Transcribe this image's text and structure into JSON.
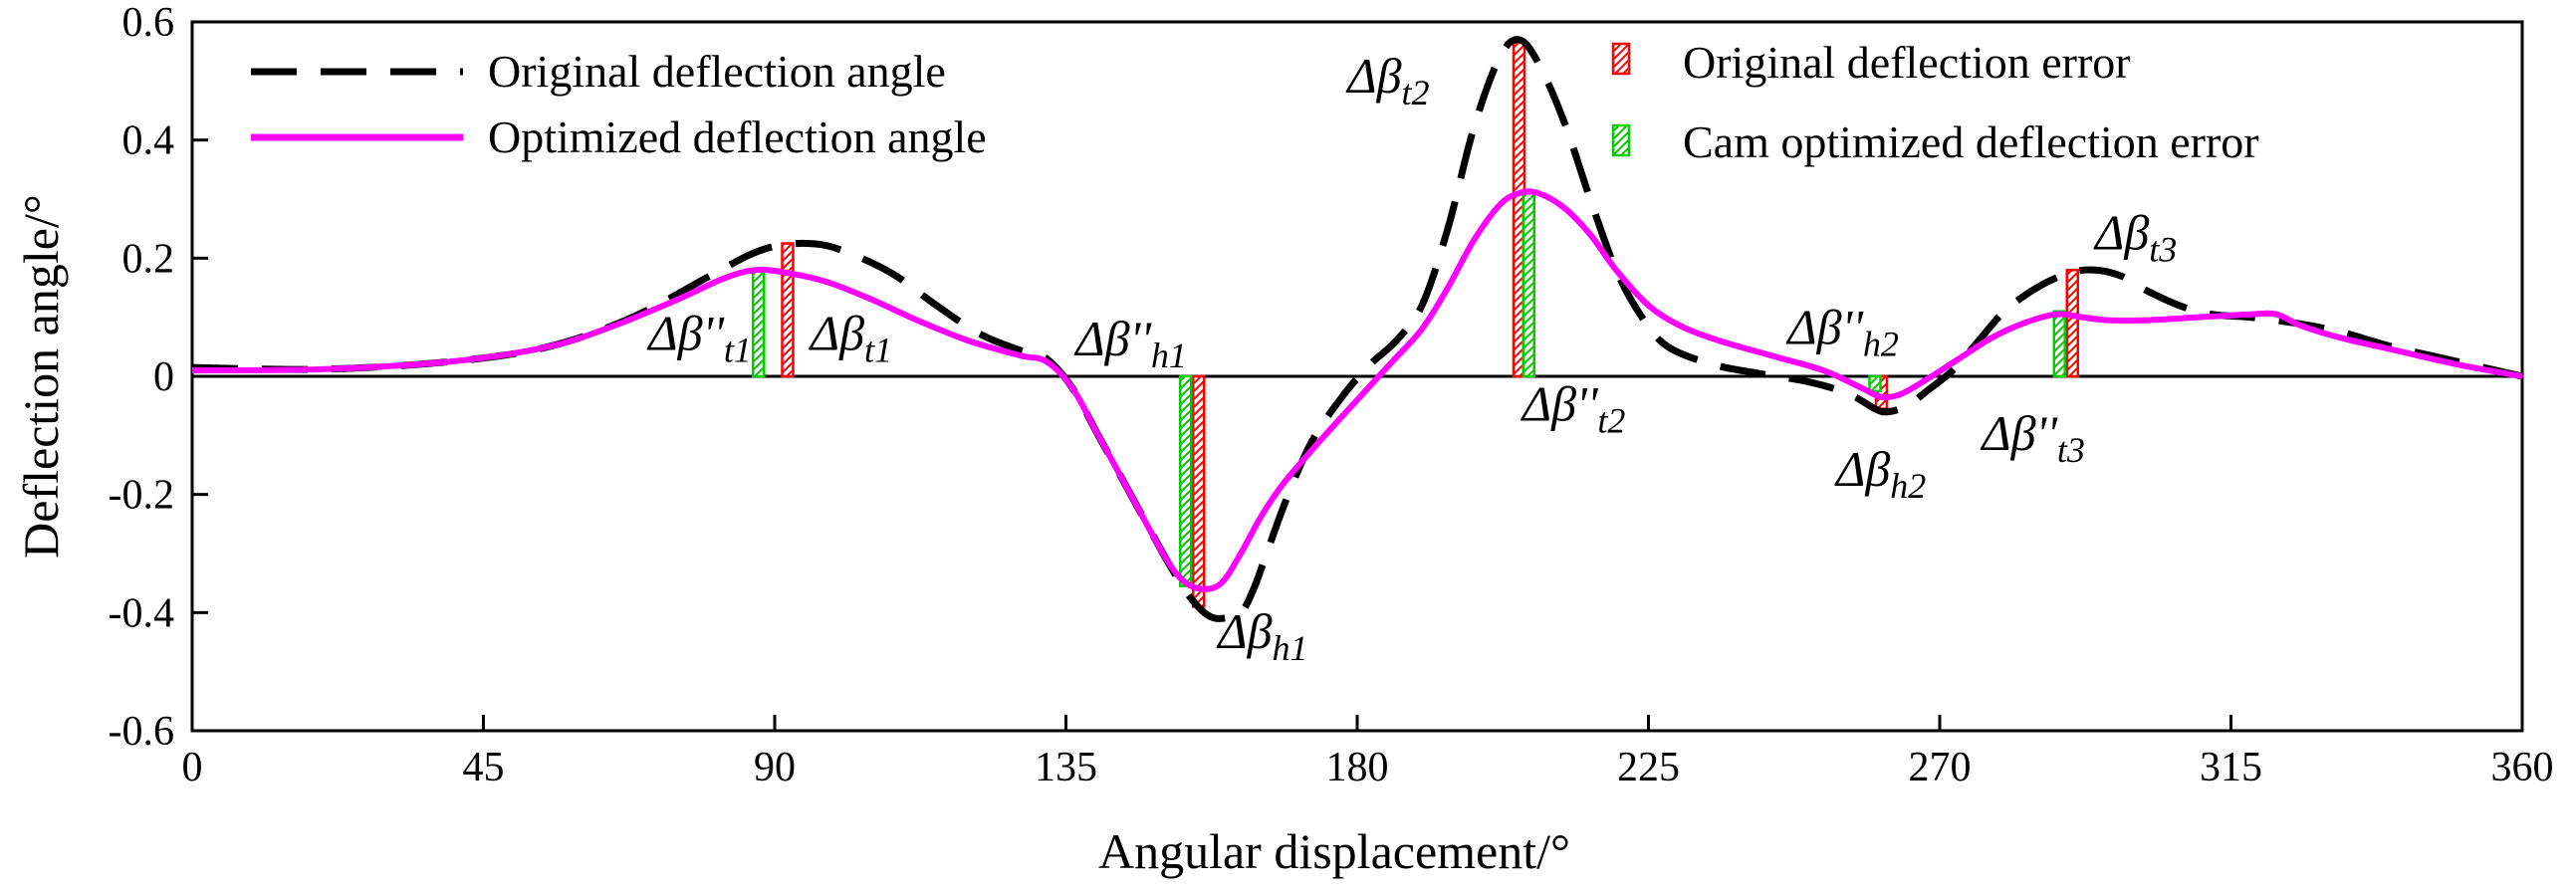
{
  "chart_data": {
    "type": "line",
    "title": "",
    "xlabel": "Angular displacement/°",
    "ylabel": "Deflection  angle/°",
    "xlim": [
      0,
      360
    ],
    "ylim": [
      -0.6,
      0.6
    ],
    "xticks": [
      0,
      45,
      90,
      135,
      180,
      225,
      270,
      315,
      360
    ],
    "xtick_labels": [
      "0",
      "45",
      "90",
      "135",
      "180",
      "225",
      "270",
      "315",
      "360"
    ],
    "yticks": [
      0.6,
      0.4,
      0.2,
      0,
      -0.2,
      -0.4,
      -0.6
    ],
    "ytick_labels": [
      "0.6",
      "0.4",
      "0.2",
      "0",
      "-0.2",
      "-0.4",
      "-0.6"
    ],
    "grid": false,
    "legend_left": [
      "Original deflection angle",
      "Optimized deflection angle"
    ],
    "legend_right": [
      "Original deflection error",
      "Cam optimized deflection error"
    ],
    "series": [
      {
        "name": "Original deflection angle",
        "color": "#000000",
        "dash": true,
        "points": [
          [
            0,
            0.015
          ],
          [
            20,
            0.012
          ],
          [
            40,
            0.025
          ],
          [
            55,
            0.05
          ],
          [
            68,
            0.1
          ],
          [
            80,
            0.17
          ],
          [
            86,
            0.205
          ],
          [
            90,
            0.22
          ],
          [
            95,
            0.225
          ],
          [
            100,
            0.215
          ],
          [
            108,
            0.175
          ],
          [
            115,
            0.12
          ],
          [
            122,
            0.07
          ],
          [
            129,
            0.04
          ],
          [
            132,
            0.03
          ],
          [
            136,
            -0.02
          ],
          [
            140,
            -0.1
          ],
          [
            145,
            -0.2
          ],
          [
            150,
            -0.3
          ],
          [
            153,
            -0.355
          ],
          [
            155,
            -0.385
          ],
          [
            157,
            -0.405
          ],
          [
            159,
            -0.41
          ],
          [
            162,
            -0.4
          ],
          [
            164,
            -0.36
          ],
          [
            166,
            -0.3
          ],
          [
            169,
            -0.21
          ],
          [
            173,
            -0.11
          ],
          [
            178,
            -0.03
          ],
          [
            182,
            0.02
          ],
          [
            186,
            0.06
          ],
          [
            190,
            0.12
          ],
          [
            194,
            0.25
          ],
          [
            198,
            0.42
          ],
          [
            202,
            0.54
          ],
          [
            205,
            0.57
          ],
          [
            208,
            0.53
          ],
          [
            212,
            0.43
          ],
          [
            216,
            0.3
          ],
          [
            220,
            0.18
          ],
          [
            224,
            0.1
          ],
          [
            228,
            0.05
          ],
          [
            235,
            0.02
          ],
          [
            242,
            0.005
          ],
          [
            250,
            -0.01
          ],
          [
            256,
            -0.03
          ],
          [
            260,
            -0.055
          ],
          [
            262,
            -0.06
          ],
          [
            265,
            -0.05
          ],
          [
            268,
            -0.025
          ],
          [
            272,
            0.01
          ],
          [
            276,
            0.06
          ],
          [
            280,
            0.11
          ],
          [
            285,
            0.15
          ],
          [
            290,
            0.175
          ],
          [
            294,
            0.18
          ],
          [
            298,
            0.17
          ],
          [
            302,
            0.145
          ],
          [
            307,
            0.12
          ],
          [
            312,
            0.105
          ],
          [
            318,
            0.1
          ],
          [
            325,
            0.09
          ],
          [
            332,
            0.075
          ],
          [
            340,
            0.05
          ],
          [
            350,
            0.025
          ],
          [
            360,
            0
          ]
        ]
      },
      {
        "name": "Optimized deflection angle",
        "color": "#ff00ff",
        "dash": false,
        "points": [
          [
            0,
            0.01
          ],
          [
            20,
            0.012
          ],
          [
            40,
            0.025
          ],
          [
            55,
            0.05
          ],
          [
            65,
            0.085
          ],
          [
            75,
            0.13
          ],
          [
            82,
            0.165
          ],
          [
            87,
            0.18
          ],
          [
            92,
            0.175
          ],
          [
            98,
            0.16
          ],
          [
            105,
            0.13
          ],
          [
            112,
            0.095
          ],
          [
            120,
            0.06
          ],
          [
            128,
            0.035
          ],
          [
            132,
            0.025
          ],
          [
            136,
            -0.02
          ],
          [
            140,
            -0.1
          ],
          [
            145,
            -0.2
          ],
          [
            150,
            -0.3
          ],
          [
            153,
            -0.345
          ],
          [
            156,
            -0.36
          ],
          [
            159,
            -0.35
          ],
          [
            162,
            -0.3
          ],
          [
            165,
            -0.24
          ],
          [
            168,
            -0.19
          ],
          [
            171,
            -0.15
          ],
          [
            175,
            -0.1
          ],
          [
            180,
            -0.04
          ],
          [
            185,
            0.02
          ],
          [
            190,
            0.08
          ],
          [
            194,
            0.15
          ],
          [
            198,
            0.23
          ],
          [
            202,
            0.29
          ],
          [
            205,
            0.31
          ],
          [
            208,
            0.31
          ],
          [
            212,
            0.285
          ],
          [
            216,
            0.24
          ],
          [
            220,
            0.18
          ],
          [
            225,
            0.12
          ],
          [
            230,
            0.085
          ],
          [
            236,
            0.06
          ],
          [
            244,
            0.035
          ],
          [
            252,
            0.01
          ],
          [
            258,
            -0.02
          ],
          [
            261,
            -0.035
          ],
          [
            264,
            -0.03
          ],
          [
            268,
            -0.005
          ],
          [
            273,
            0.03
          ],
          [
            278,
            0.065
          ],
          [
            283,
            0.09
          ],
          [
            288,
            0.105
          ],
          [
            292,
            0.1
          ],
          [
            296,
            0.095
          ],
          [
            302,
            0.095
          ],
          [
            310,
            0.1
          ],
          [
            318,
            0.105
          ],
          [
            322,
            0.105
          ],
          [
            326,
            0.085
          ],
          [
            332,
            0.065
          ],
          [
            340,
            0.045
          ],
          [
            350,
            0.02
          ],
          [
            360,
            0
          ]
        ]
      }
    ],
    "error_bars": [
      {
        "kind": "original",
        "x": 92,
        "y0": 0,
        "y1": 0.225
      },
      {
        "kind": "optimized",
        "x": 87.5,
        "y0": 0,
        "y1": 0.18
      },
      {
        "kind": "original",
        "x": 155.5,
        "y0": 0,
        "y1": -0.39
      },
      {
        "kind": "optimized",
        "x": 153.5,
        "y0": 0,
        "y1": -0.355
      },
      {
        "kind": "original",
        "x": 205,
        "y0": 0,
        "y1": 0.565
      },
      {
        "kind": "optimized",
        "x": 206.5,
        "y0": 0,
        "y1": 0.31
      },
      {
        "kind": "original",
        "x": 261,
        "y0": 0,
        "y1": -0.055
      },
      {
        "kind": "optimized",
        "x": 260,
        "y0": 0,
        "y1": -0.025
      },
      {
        "kind": "original",
        "x": 290.5,
        "y0": 0,
        "y1": 0.18
      },
      {
        "kind": "optimized",
        "x": 288.5,
        "y0": 0,
        "y1": 0.11
      }
    ],
    "annotations": [
      {
        "base": "Δβ''",
        "sub": "t1",
        "x": 70.5,
        "y": 0.045
      },
      {
        "base": "Δβ",
        "sub": "t1",
        "x": 95.5,
        "y": 0.045
      },
      {
        "base": "Δβ''",
        "sub": "h1",
        "x": 136.5,
        "y": 0.035
      },
      {
        "base": "Δβ",
        "sub": "h1",
        "x": 158.5,
        "y": -0.46
      },
      {
        "base": "Δβ",
        "sub": "t2",
        "x": 178.5,
        "y": 0.48
      },
      {
        "base": "Δβ''",
        "sub": "t2",
        "x": 205.5,
        "y": -0.075
      },
      {
        "base": "Δβ''",
        "sub": "h2",
        "x": 246.5,
        "y": 0.055
      },
      {
        "base": "Δβ",
        "sub": "h2",
        "x": 254,
        "y": -0.185
      },
      {
        "base": "Δβ''",
        "sub": "t3",
        "x": 276.5,
        "y": -0.125
      },
      {
        "base": "Δβ",
        "sub": "t3",
        "x": 294,
        "y": 0.215
      }
    ]
  },
  "colors": {
    "original_line": "#000000",
    "optimized_line": "#ff00ff",
    "original_error": "#ff0000",
    "optimized_error": "#00cc00"
  }
}
